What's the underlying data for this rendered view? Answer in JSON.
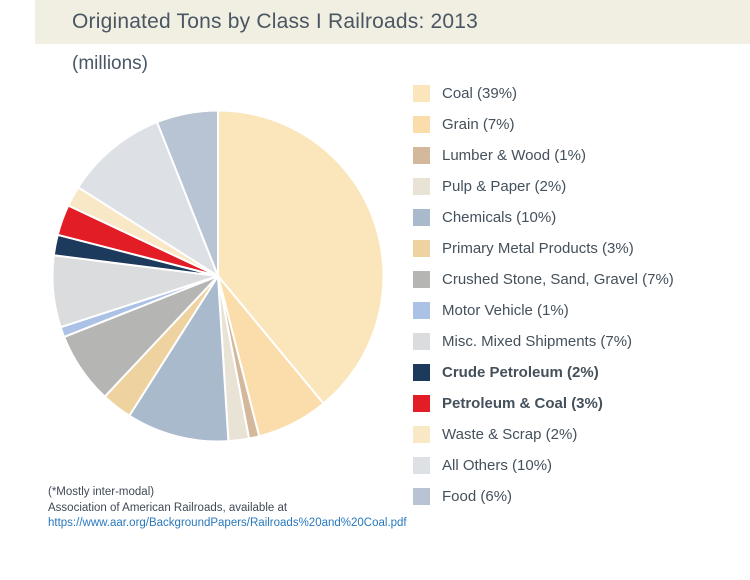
{
  "header": {
    "title": "Originated Tons by Class I Railroads: 2013",
    "subtitle": "(millions)"
  },
  "chart_data": {
    "type": "pie",
    "title": "Originated Tons by Class I Railroads: 2013",
    "subtitle": "(millions)",
    "units": "percent of originated tons",
    "start_angle": "top",
    "direction": "clockwise",
    "legend_position": "right",
    "slices": [
      {
        "name": "Coal",
        "value": 39,
        "label": "Coal (39%)",
        "color": "#fbe6bc",
        "bold": false
      },
      {
        "name": "Grain",
        "value": 7,
        "label": "Grain (7%)",
        "color": "#fbdcab",
        "bold": false
      },
      {
        "name": "Lumber & Wood",
        "value": 1,
        "label": "Lumber & Wood (1%)",
        "color": "#d3b89c",
        "bold": false
      },
      {
        "name": "Pulp & Paper",
        "value": 2,
        "label": "Pulp & Paper (2%)",
        "color": "#e9e3d6",
        "bold": false
      },
      {
        "name": "Chemicals",
        "value": 10,
        "label": "Chemicals (10%)",
        "color": "#a9bacd",
        "bold": false
      },
      {
        "name": "Primary Metal Products",
        "value": 3,
        "label": "Primary Metal Products (3%)",
        "color": "#eed2a0",
        "bold": false
      },
      {
        "name": "Crushed Stone, Sand, Gravel",
        "value": 7,
        "label": "Crushed Stone, Sand, Gravel (7%)",
        "color": "#b5b5b4",
        "bold": false
      },
      {
        "name": "Motor Vehicle",
        "value": 1,
        "label": "Motor Vehicle (1%)",
        "color": "#abc1e6",
        "bold": false
      },
      {
        "name": "Misc. Mixed Shipments",
        "value": 7,
        "label": "Misc. Mixed Shipments (7%)",
        "color": "#dbdcdd",
        "bold": false
      },
      {
        "name": "Crude Petroleum",
        "value": 2,
        "label": "Crude Petroleum (2%)",
        "color": "#1c3a5c",
        "bold": true
      },
      {
        "name": "Petroleum & Coal",
        "value": 3,
        "label": "Petroleum & Coal (3%)",
        "color": "#e21d25",
        "bold": true
      },
      {
        "name": "Waste & Scrap",
        "value": 2,
        "label": "Waste & Scrap (2%)",
        "color": "#f8e8c6",
        "bold": false
      },
      {
        "name": "All Others",
        "value": 10,
        "label": "All Others (10%)",
        "color": "#dde1e5",
        "bold": false
      },
      {
        "name": "Food",
        "value": 6,
        "label": "Food (6%)",
        "color": "#b8c3d3",
        "bold": false
      }
    ]
  },
  "footer": {
    "note": "(*Mostly inter-modal)",
    "source": "Association of American Railroads, available at",
    "link": "https://www.aar.org/BackgroundPapers/Railroads%20and%20Coal.pdf"
  },
  "colors": {
    "header_background": "#f0efe2",
    "title_text": "#4a5663",
    "legend_text": "#44505b",
    "link": "#2878be"
  }
}
